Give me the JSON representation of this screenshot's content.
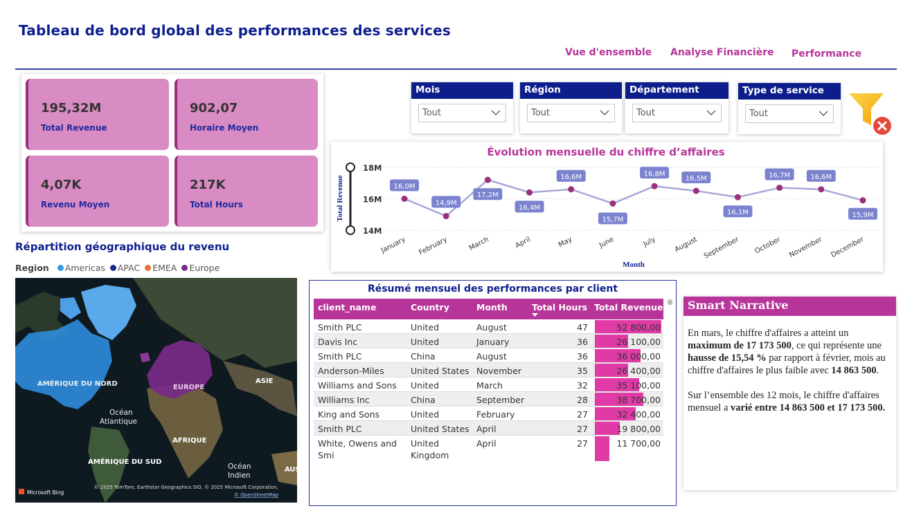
{
  "header": {
    "title": "Tableau de bord global des performances des services",
    "nav": [
      "Vue d'ensemble",
      "Analyse Financière",
      "Performance"
    ]
  },
  "kpis": [
    {
      "value": "195,32M",
      "label": "Total Revenue"
    },
    {
      "value": "902,07",
      "label": "Horaire Moyen"
    },
    {
      "value": "4,07K",
      "label": "Revenu Moyen"
    },
    {
      "value": "217K",
      "label": "Total Hours"
    }
  ],
  "slicers": [
    {
      "title": "Mois",
      "value": "Tout"
    },
    {
      "title": "Région",
      "value": "Tout"
    },
    {
      "title": "Département",
      "value": "Tout"
    },
    {
      "title": "Type de service",
      "value": "Tout"
    }
  ],
  "icons": {
    "filter": "funnel-icon",
    "clear": "clear-filter-icon",
    "dropdown": "chevron-down-icon"
  },
  "colors": {
    "brand_blue": "#0d1e8c",
    "accent_pink": "#b7359a",
    "kpi_fill": "#d98bc3",
    "line": "#a7a6d9",
    "marker": "#9a2f7c",
    "label_fill": "#7b83cf"
  },
  "chart_data": {
    "type": "line",
    "title": "Évolution mensuelle du chiffre d’affaires",
    "xlabel": "Month",
    "ylabel": "Total Revenue",
    "categories": [
      "January",
      "February",
      "March",
      "April",
      "May",
      "June",
      "July",
      "August",
      "September",
      "October",
      "November",
      "December"
    ],
    "values": [
      16.0,
      14.9,
      17.2,
      16.4,
      16.6,
      15.7,
      16.8,
      16.5,
      16.1,
      16.7,
      16.6,
      15.9
    ],
    "data_labels": [
      "16,0M",
      "14,9M",
      "17,2M",
      "16,4M",
      "16,6M",
      "15,7M",
      "16,8M",
      "16,5M",
      "16,1M",
      "16,7M",
      "16,6M",
      "15,9M"
    ],
    "ytick_labels": [
      "18M",
      "16M",
      "14M"
    ],
    "yticks": [
      18,
      16,
      14
    ],
    "ylim": [
      14,
      18
    ],
    "grid": true
  },
  "map": {
    "title": "Répartition géographique du revenu",
    "legend_title": "Region",
    "legend": [
      {
        "name": "Americas",
        "color": "#2f9be0"
      },
      {
        "name": "APAC",
        "color": "#1a2a8a"
      },
      {
        "name": "EMEA",
        "color": "#e8703a"
      },
      {
        "name": "Europe",
        "color": "#7a2a88"
      }
    ],
    "labels": [
      "AMÉRIQUE DU NORD",
      "EUROPE",
      "ASIE",
      "Océan Atlantique",
      "AFRIQUE",
      "AMÉRIQUE DU SUD",
      "Océan Indien",
      "AUS"
    ],
    "attribution": "© 2025 TomTom, Earthstar Geographics SIO, © 2025 Microsoft Corporation,",
    "attribution_link": "© OpenStreetMap",
    "provider": "Microsoft Bing"
  },
  "table": {
    "title": "Résumé mensuel des performances par client",
    "columns": [
      "client_name",
      "Country",
      "Month",
      "Total Hours",
      "Total Revenue"
    ],
    "rows": [
      {
        "client": "Smith PLC",
        "country": "United Kingdom",
        "month": "August",
        "hours": "47",
        "revenue": "52 800,00",
        "rev_value": 52800
      },
      {
        "client": "Davis Inc",
        "country": "United Kingdom",
        "month": "January",
        "hours": "36",
        "revenue": "26 100,00",
        "rev_value": 26100
      },
      {
        "client": "Smith PLC",
        "country": "China",
        "month": "August",
        "hours": "36",
        "revenue": "36 000,00",
        "rev_value": 36000
      },
      {
        "client": "Anderson-Miles",
        "country": "United States",
        "month": "November",
        "hours": "35",
        "revenue": "26 400,00",
        "rev_value": 26400
      },
      {
        "client": "Williams and Sons",
        "country": "United Kingdom",
        "month": "March",
        "hours": "32",
        "revenue": "35 100,00",
        "rev_value": 35100
      },
      {
        "client": "Williams Inc",
        "country": "China",
        "month": "September",
        "hours": "28",
        "revenue": "38 700,00",
        "rev_value": 38700
      },
      {
        "client": "King and Sons",
        "country": "United Kingdom",
        "month": "February",
        "hours": "27",
        "revenue": "32 400,00",
        "rev_value": 32400
      },
      {
        "client": "Smith PLC",
        "country": "United States",
        "month": "April",
        "hours": "27",
        "revenue": "19 800,00",
        "rev_value": 19800
      },
      {
        "client": "White, Owens and Smi",
        "country": "United Kingdom",
        "month": "April",
        "hours": "27",
        "revenue": "11 700,00",
        "rev_value": 11700
      }
    ]
  },
  "narrative": {
    "title": "Smart Narrative",
    "p1_a": "En mars, le chiffre d'affaires a atteint un ",
    "p1_b": "maximum de 17 173 500",
    "p1_c": ", ce qui représente une ",
    "p1_d": "hausse de 15,54 %",
    "p1_e": " par rapport à février, mois au chiffre d'affaires le plus faible avec ",
    "p1_f": "14 863 500",
    "p1_g": ".",
    "p2_a": "Sur l’ensemble des 12 mois, le chiffre d'affaires mensuel a ",
    "p2_b": "varié entre 14 863 500 et 17 173 500",
    "p2_c": "."
  }
}
